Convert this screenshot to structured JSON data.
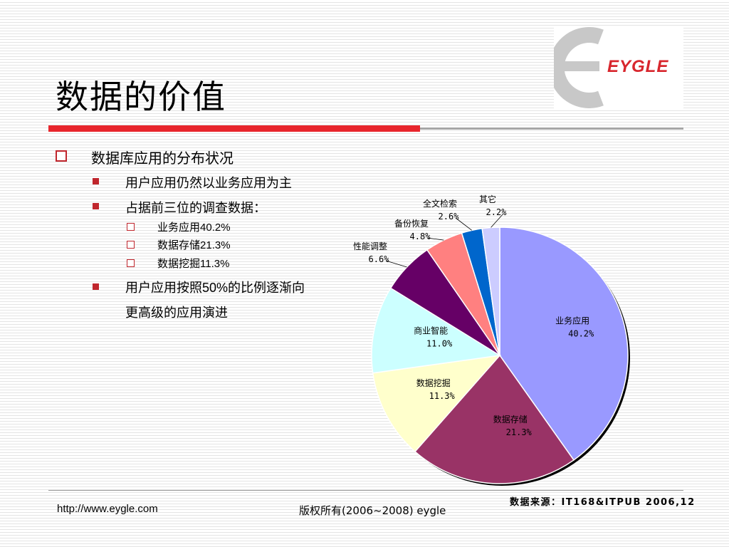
{
  "slide": {
    "title": "数据的价值",
    "logo_text": "EYGLE"
  },
  "content": {
    "heading": "数据库应用的分布状况",
    "bullets": [
      {
        "text": "用户应用仍然以业务应用为主"
      },
      {
        "text": "占据前三位的调查数据："
      },
      {
        "text_pre": "用户应用按照",
        "num": "50%",
        "text_post": "的比例逐渐向",
        "line2": "更高级的应用演进"
      }
    ],
    "sub_bullets": [
      {
        "label": "业务应用",
        "value": "40.2%"
      },
      {
        "label": "数据存储",
        "value": "21.3%"
      },
      {
        "label": "数据挖掘",
        "value": "11.3%"
      }
    ]
  },
  "footer": {
    "url": "http://www.eygle.com",
    "copyright": "版权所有(2006~2008) eygle",
    "data_source": "数据来源：IT168&ITPUB 2006,12"
  },
  "colors": {
    "accent_red": "#e8262d",
    "bullet_red": "#c0262d"
  },
  "chart_data": {
    "type": "pie",
    "start_angle_deg": 0,
    "direction": "clockwise",
    "series": [
      {
        "label": "业务应用",
        "pct_label": "40.2%",
        "value": 40.2,
        "color": "#9999ff"
      },
      {
        "label": "数据存储",
        "pct_label": "21.3%",
        "value": 21.3,
        "color": "#993366"
      },
      {
        "label": "数据挖掘",
        "pct_label": "11.3%",
        "value": 11.3,
        "color": "#ffffcc"
      },
      {
        "label": "商业智能",
        "pct_label": "11.0%",
        "value": 11.0,
        "color": "#ccffff"
      },
      {
        "label": "性能调整",
        "pct_label": "6.6%",
        "value": 6.6,
        "color": "#660066"
      },
      {
        "label": "备份恢复",
        "pct_label": "4.8%",
        "value": 4.8,
        "color": "#ff8080"
      },
      {
        "label": "全文检索",
        "pct_label": "2.6%",
        "value": 2.6,
        "color": "#0066cc"
      },
      {
        "label": "其它",
        "pct_label": "2.2%",
        "value": 2.2,
        "color": "#ccccff"
      }
    ]
  }
}
